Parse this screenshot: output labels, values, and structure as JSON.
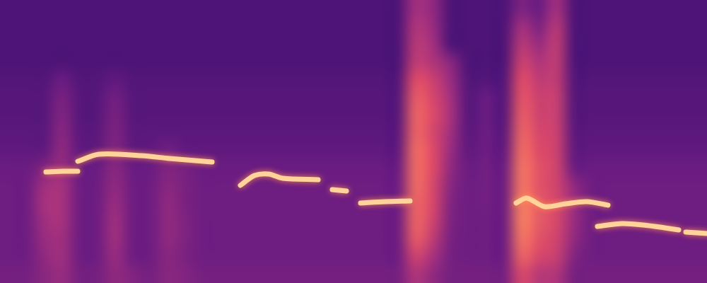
{
  "chart_data": {
    "type": "spectrogram",
    "xlim": [
      0,
      1000
    ],
    "ylim": [
      0,
      400
    ],
    "tick_labels": false,
    "grid": false,
    "zlim": [
      0,
      100
    ],
    "cells": [
      [
        24,
        24,
        24,
        24,
        24,
        24,
        24,
        24,
        24,
        24,
        24,
        24,
        24,
        24,
        24,
        24,
        24,
        24,
        24,
        24,
        24,
        24,
        24,
        45,
        40,
        24,
        24,
        24,
        24,
        35,
        30,
        45,
        24,
        24,
        24,
        24,
        24,
        24,
        24,
        24
      ],
      [
        24,
        24,
        24,
        24,
        24,
        24,
        24,
        24,
        24,
        24,
        24,
        24,
        24,
        24,
        24,
        24,
        24,
        24,
        24,
        24,
        24,
        24,
        24,
        48,
        42,
        24,
        24,
        24,
        24,
        45,
        35,
        50,
        24,
        24,
        24,
        24,
        24,
        24,
        24,
        24
      ],
      [
        24,
        24,
        24,
        24,
        24,
        24,
        24,
        24,
        24,
        24,
        24,
        24,
        24,
        24,
        24,
        24,
        24,
        24,
        24,
        24,
        24,
        24,
        24,
        50,
        45,
        24,
        24,
        24,
        24,
        50,
        42,
        52,
        24,
        24,
        24,
        24,
        24,
        24,
        24,
        24
      ],
      [
        24,
        24,
        24,
        24,
        24,
        24,
        24,
        24,
        24,
        24,
        24,
        24,
        24,
        24,
        24,
        24,
        24,
        24,
        24,
        24,
        24,
        24,
        24,
        52,
        48,
        38,
        24,
        24,
        24,
        55,
        48,
        52,
        24,
        24,
        24,
        24,
        24,
        24,
        24,
        24
      ],
      [
        25,
        25,
        25,
        30,
        25,
        25,
        28,
        25,
        25,
        25,
        25,
        25,
        25,
        25,
        25,
        25,
        25,
        25,
        25,
        25,
        25,
        25,
        25,
        60,
        55,
        42,
        25,
        25,
        25,
        60,
        52,
        52,
        25,
        25,
        25,
        25,
        25,
        25,
        25,
        25
      ],
      [
        26,
        26,
        26,
        34,
        26,
        26,
        32,
        26,
        26,
        26,
        26,
        26,
        26,
        26,
        26,
        26,
        26,
        26,
        26,
        26,
        26,
        26,
        26,
        64,
        58,
        45,
        26,
        30,
        26,
        62,
        55,
        54,
        26,
        26,
        26,
        26,
        26,
        26,
        26,
        26
      ],
      [
        26,
        26,
        26,
        36,
        26,
        26,
        34,
        26,
        26,
        26,
        26,
        26,
        26,
        26,
        26,
        26,
        26,
        26,
        26,
        26,
        26,
        26,
        26,
        66,
        60,
        46,
        26,
        30,
        26,
        64,
        56,
        54,
        26,
        26,
        26,
        26,
        26,
        26,
        26,
        26
      ],
      [
        27,
        27,
        27,
        38,
        27,
        27,
        35,
        27,
        27,
        27,
        27,
        27,
        27,
        27,
        27,
        27,
        27,
        27,
        27,
        27,
        27,
        27,
        27,
        66,
        58,
        44,
        27,
        31,
        27,
        66,
        58,
        55,
        27,
        27,
        27,
        27,
        27,
        27,
        27,
        27
      ],
      [
        28,
        28,
        28,
        40,
        28,
        28,
        36,
        28,
        28,
        32,
        28,
        28,
        28,
        28,
        28,
        28,
        28,
        28,
        28,
        28,
        28,
        28,
        28,
        68,
        60,
        42,
        28,
        31,
        28,
        68,
        60,
        55,
        28,
        28,
        28,
        28,
        28,
        28,
        28,
        28
      ],
      [
        30,
        30,
        36,
        42,
        30,
        30,
        38,
        30,
        30,
        36,
        33,
        30,
        30,
        30,
        30,
        30,
        30,
        30,
        30,
        30,
        30,
        30,
        30,
        68,
        60,
        40,
        30,
        32,
        30,
        70,
        62,
        56,
        30,
        30,
        30,
        30,
        30,
        30,
        30,
        30
      ],
      [
        31,
        31,
        44,
        46,
        31,
        31,
        40,
        31,
        31,
        38,
        34,
        31,
        31,
        31,
        31,
        31,
        31,
        31,
        31,
        31,
        31,
        31,
        31,
        68,
        58,
        38,
        31,
        32,
        31,
        70,
        62,
        56,
        40,
        31,
        31,
        31,
        31,
        31,
        31,
        31
      ],
      [
        31,
        31,
        46,
        46,
        31,
        31,
        42,
        31,
        31,
        40,
        34,
        31,
        31,
        31,
        31,
        31,
        31,
        31,
        31,
        31,
        31,
        31,
        31,
        66,
        58,
        36,
        31,
        32,
        31,
        72,
        64,
        58,
        42,
        31,
        31,
        31,
        31,
        31,
        31,
        31
      ],
      [
        31,
        31,
        44,
        46,
        31,
        31,
        44,
        31,
        31,
        40,
        35,
        31,
        31,
        31,
        31,
        31,
        31,
        31,
        31,
        31,
        31,
        31,
        31,
        66,
        56,
        35,
        31,
        31,
        31,
        72,
        64,
        58,
        42,
        31,
        31,
        31,
        31,
        31,
        31,
        31
      ],
      [
        31,
        31,
        42,
        44,
        31,
        31,
        44,
        31,
        31,
        40,
        35,
        31,
        31,
        31,
        31,
        31,
        31,
        31,
        31,
        31,
        31,
        31,
        31,
        64,
        52,
        34,
        31,
        31,
        31,
        70,
        62,
        56,
        40,
        31,
        31,
        31,
        31,
        31,
        31,
        31
      ],
      [
        31,
        31,
        40,
        44,
        31,
        31,
        42,
        31,
        31,
        38,
        34,
        31,
        31,
        31,
        31,
        31,
        31,
        31,
        31,
        31,
        31,
        31,
        31,
        56,
        46,
        33,
        31,
        31,
        31,
        66,
        58,
        54,
        36,
        31,
        31,
        31,
        31,
        31,
        31,
        31
      ],
      [
        33,
        33,
        38,
        42,
        33,
        33,
        40,
        36,
        33,
        38,
        36,
        33,
        33,
        33,
        33,
        33,
        33,
        33,
        33,
        33,
        33,
        33,
        33,
        48,
        40,
        33,
        33,
        33,
        33,
        58,
        50,
        48,
        33,
        33,
        33,
        33,
        33,
        33,
        33,
        33
      ]
    ],
    "series": [
      {
        "color": "#ffd39a",
        "x": [
          65,
          90,
          110
        ],
        "values": [
          157,
          158,
          158
        ]
      },
      {
        "color": "#ffd39a",
        "x": [
          110,
          140,
          200,
          240,
          300
        ],
        "values": [
          172,
          182,
          180,
          176,
          171
        ]
      },
      {
        "color": "#ffd39a",
        "x": [
          340,
          360,
          380,
          400,
          450
        ],
        "values": [
          138,
          152,
          154,
          148,
          146
        ]
      },
      {
        "color": "#ffd39a",
        "x": [
          470,
          490
        ],
        "values": [
          132,
          130
        ]
      },
      {
        "color": "#ffd39a",
        "x": [
          510,
          545,
          580
        ],
        "values": [
          113,
          115,
          116
        ]
      },
      {
        "color": "#ffd39a",
        "x": [
          730,
          745,
          770,
          800,
          830,
          860
        ],
        "values": [
          113,
          120,
          108,
          112,
          115,
          110
        ]
      },
      {
        "color": "#ffd39a",
        "x": [
          845,
          880,
          910,
          940,
          960
        ],
        "values": [
          80,
          84,
          82,
          78,
          75
        ]
      },
      {
        "color": "#ffd39a",
        "x": [
          970,
          1000
        ],
        "values": [
          72,
          70
        ]
      }
    ]
  }
}
